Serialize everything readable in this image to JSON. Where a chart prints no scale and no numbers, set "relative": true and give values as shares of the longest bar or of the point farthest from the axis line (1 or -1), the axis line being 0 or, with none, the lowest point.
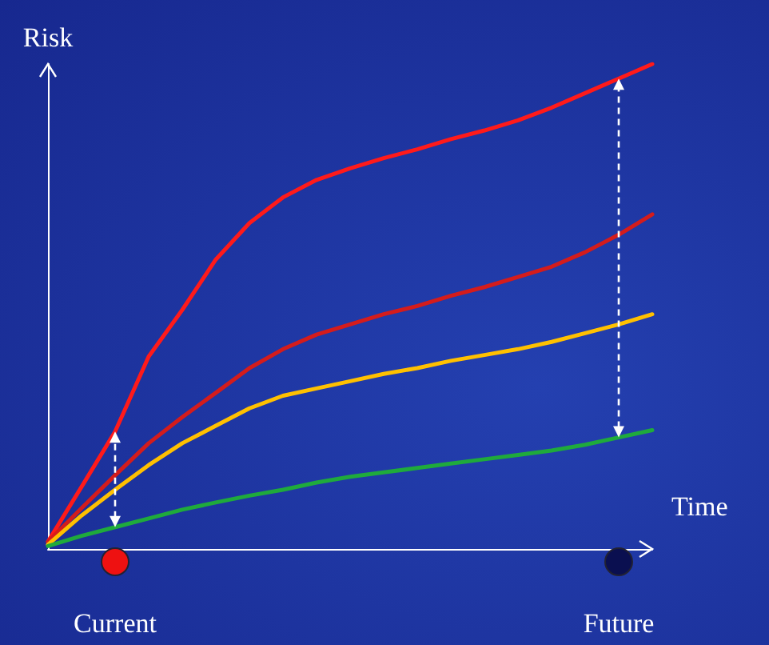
{
  "chart_data": {
    "type": "line",
    "relative": true,
    "xlabel": "Time",
    "ylabel": "Risk",
    "categories": [
      null,
      null,
      "Current",
      null,
      null,
      null,
      null,
      null,
      null,
      null,
      null,
      null,
      null,
      null,
      null,
      null,
      null,
      "Future",
      null
    ],
    "series": [
      {
        "color": "#ff1a1a",
        "values": [
          0.015,
          0.128,
          0.242,
          0.397,
          0.493,
          0.597,
          0.672,
          0.725,
          0.761,
          0.785,
          0.806,
          0.824,
          0.845,
          0.863,
          0.884,
          0.91,
          0.94,
          0.97,
          1
        ]
      },
      {
        "color": "#d41c1c",
        "values": [
          0.015,
          0.084,
          0.152,
          0.218,
          0.272,
          0.322,
          0.373,
          0.412,
          0.442,
          0.463,
          0.484,
          0.501,
          0.522,
          0.54,
          0.561,
          0.582,
          0.612,
          0.648,
          0.69
        ]
      },
      {
        "color": "#ffc000",
        "values": [
          0.009,
          0.069,
          0.122,
          0.173,
          0.218,
          0.254,
          0.29,
          0.316,
          0.331,
          0.346,
          0.361,
          0.373,
          0.388,
          0.4,
          0.412,
          0.427,
          0.445,
          0.463,
          0.484
        ]
      },
      {
        "color": "#1faa3c",
        "values": [
          0.006,
          0.027,
          0.045,
          0.063,
          0.081,
          0.096,
          0.11,
          0.122,
          0.137,
          0.149,
          0.158,
          0.167,
          0.176,
          0.185,
          0.194,
          0.203,
          0.215,
          0.23,
          0.245
        ]
      }
    ],
    "marker": "none",
    "line_style": "solid"
  }
}
